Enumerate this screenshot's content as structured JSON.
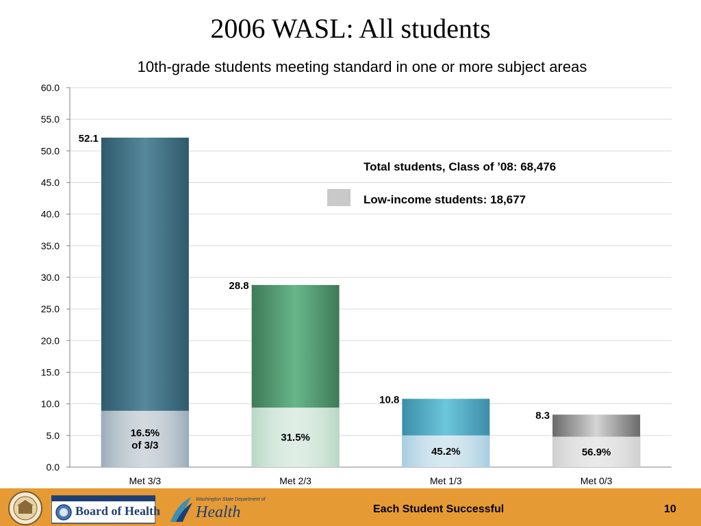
{
  "slide": {
    "title": "2006 WASL: All students",
    "subtitle": "10th-grade students meeting standard in one or more subject areas",
    "footer_text": "Each Student Successful",
    "page_number": "10",
    "logos": {
      "board_of_health": "Board of Health",
      "board_of_health_top": "WASHINGTON STATE",
      "dept_of_health": "Health",
      "dept_of_health_top": "Washington State Department of"
    }
  },
  "legend": {
    "total_label": "Total students, Class of ’08: 68,476",
    "low_income_label": "Low-income students: 18,677",
    "low_income_color": "#c9c9c9"
  },
  "chart_data": {
    "type": "bar",
    "categories": [
      "Met 3/3",
      "Met 2/3",
      "Met 1/3",
      "Met 0/3"
    ],
    "values": [
      52.1,
      28.8,
      10.8,
      8.3
    ],
    "value_labels": [
      "52.1",
      "28.8",
      "10.8",
      "8.3"
    ],
    "low_income_values": [
      8.9,
      9.4,
      5.0,
      4.8
    ],
    "low_income_labels": [
      "16.5%\nof 3/3",
      "31.5%",
      "45.2%",
      "56.9%"
    ],
    "ylim": [
      0,
      60
    ],
    "yticks": [
      "0.0",
      "5.0",
      "10.0",
      "15.0",
      "20.0",
      "25.0",
      "30.0",
      "35.0",
      "40.0",
      "45.0",
      "50.0",
      "55.0",
      "60.0"
    ],
    "grid": true,
    "colors": {
      "bar_main": [
        "#2f5a6c",
        "#3e7a56",
        "#3c8ea8",
        "#6a6a6a"
      ],
      "bar_main_light": [
        "#56889c",
        "#68b68a",
        "#6cc6dc",
        "#d4d4d4"
      ],
      "bar_low": [
        "#9aabb8",
        "#b8d8c4",
        "#a6cde0",
        "#cfcfcf"
      ]
    }
  }
}
